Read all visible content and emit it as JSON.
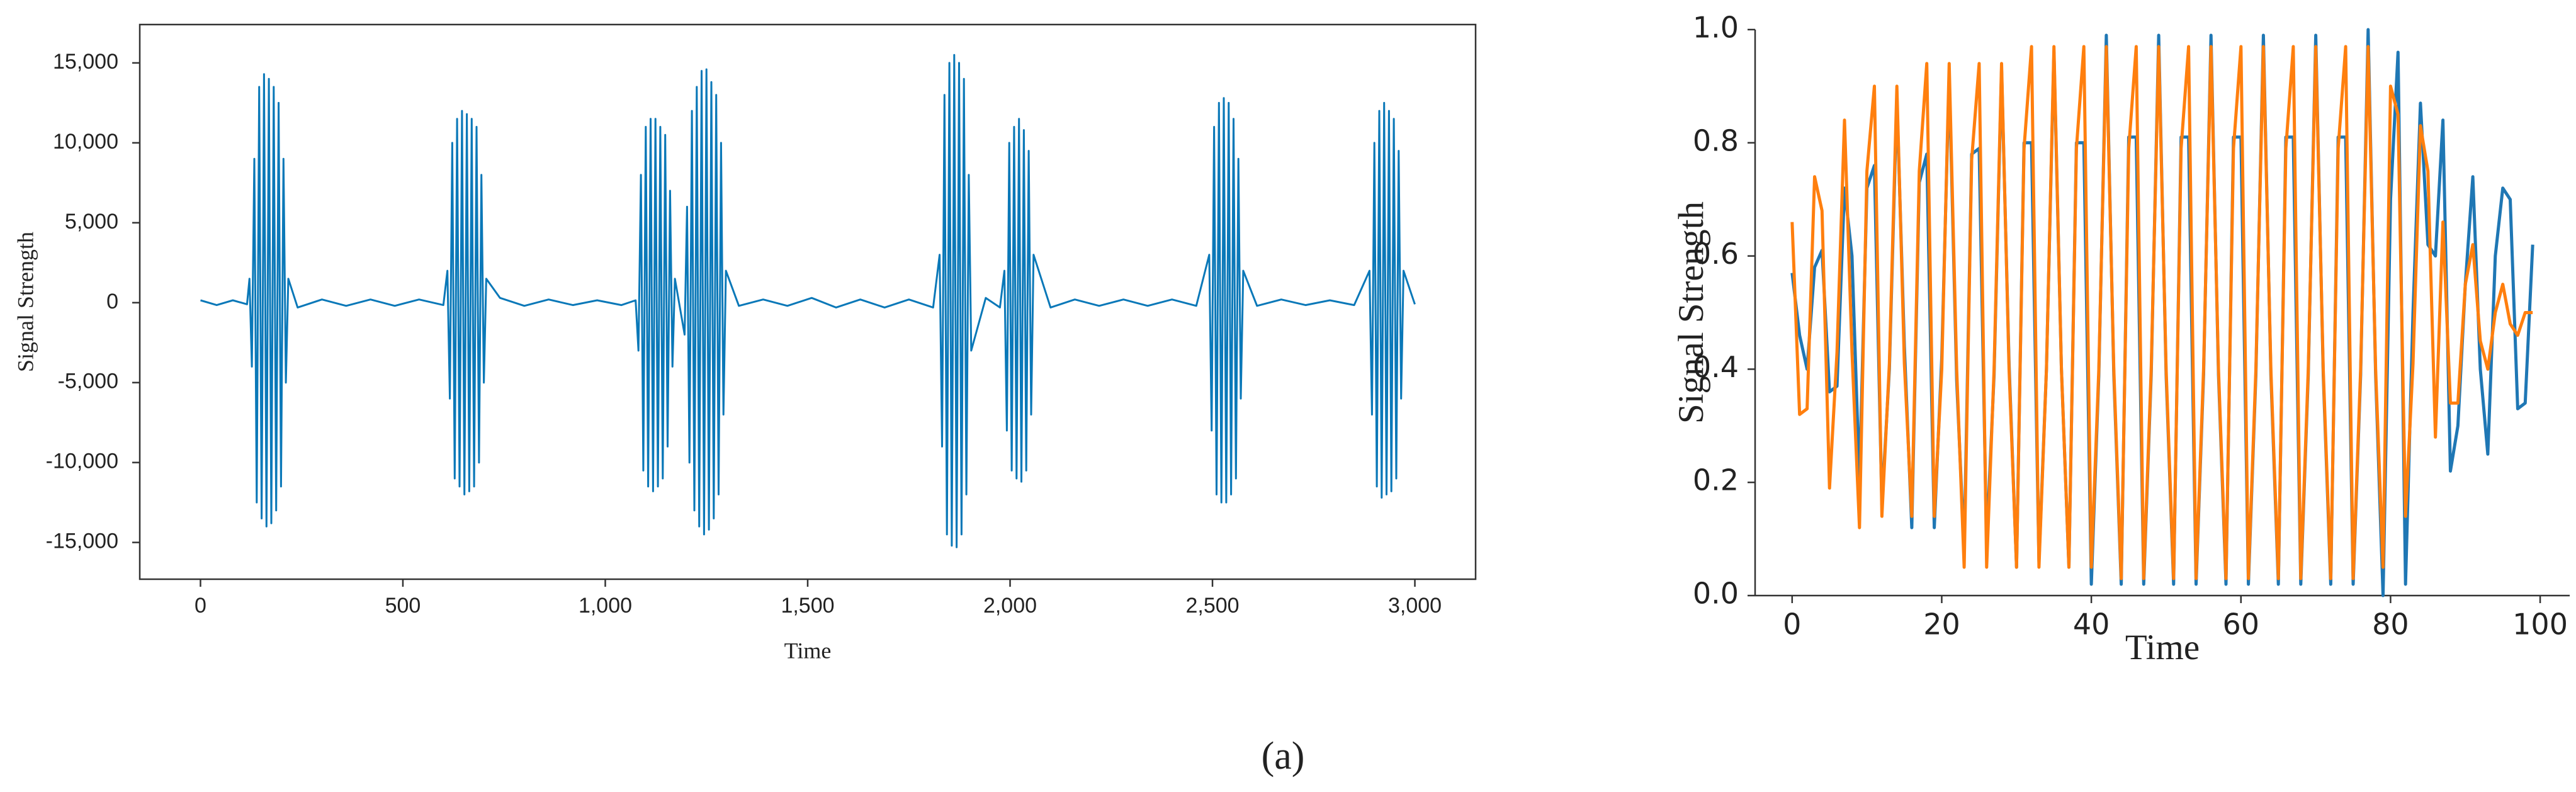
{
  "chart_data": [
    {
      "type": "line",
      "ylabel": "Signal Strength",
      "xlabel": "Time",
      "xlim": [
        -150,
        3150
      ],
      "ylim": [
        -17300,
        17400
      ],
      "xticks": [
        0,
        500,
        {
          "value": 1000,
          "label": "1,000"
        },
        {
          "value": 1500,
          "label": "1,500"
        },
        {
          "value": 2000,
          "label": "2,000"
        },
        {
          "value": 2500,
          "label": "2,500"
        },
        {
          "value": 3000,
          "label": "3,000"
        }
      ],
      "yticks": [
        {
          "value": -15000,
          "label": "-15,000"
        },
        {
          "value": -10000,
          "label": "-10,000"
        },
        {
          "value": -5000,
          "label": "-5,000"
        },
        0,
        {
          "value": 5000,
          "label": "5,000"
        },
        {
          "value": 10000,
          "label": "10,000"
        },
        {
          "value": 15000,
          "label": "15,000"
        }
      ],
      "x": [
        0,
        40,
        80,
        115,
        121,
        127,
        133,
        139,
        145,
        151,
        157,
        163,
        169,
        175,
        181,
        187,
        193,
        199,
        205,
        211,
        217,
        240,
        300,
        360,
        420,
        480,
        540,
        600,
        610,
        616,
        622,
        628,
        634,
        640,
        646,
        652,
        658,
        664,
        670,
        676,
        682,
        688,
        694,
        700,
        706,
        740,
        800,
        860,
        920,
        980,
        1040,
        1075,
        1082,
        1088,
        1094,
        1100,
        1106,
        1112,
        1118,
        1124,
        1130,
        1136,
        1142,
        1148,
        1154,
        1160,
        1166,
        1172,
        1196,
        1202,
        1208,
        1214,
        1220,
        1226,
        1232,
        1238,
        1244,
        1250,
        1256,
        1262,
        1268,
        1274,
        1280,
        1286,
        1292,
        1298,
        1330,
        1390,
        1450,
        1510,
        1570,
        1630,
        1690,
        1750,
        1810,
        1826,
        1832,
        1838,
        1844,
        1850,
        1856,
        1862,
        1868,
        1874,
        1880,
        1886,
        1892,
        1898,
        1904,
        1940,
        1975,
        1986,
        1992,
        1998,
        2004,
        2010,
        2016,
        2022,
        2028,
        2034,
        2040,
        2046,
        2052,
        2058,
        2100,
        2160,
        2220,
        2280,
        2340,
        2400,
        2460,
        2492,
        2498,
        2504,
        2510,
        2516,
        2522,
        2528,
        2534,
        2540,
        2546,
        2552,
        2558,
        2564,
        2570,
        2576,
        2610,
        2670,
        2730,
        2790,
        2850,
        2888,
        2894,
        2900,
        2906,
        2912,
        2918,
        2924,
        2930,
        2936,
        2942,
        2948,
        2954,
        2960,
        2966,
        2972,
        3000
      ],
      "series": [
        {
          "color": "#0a78b8",
          "values": [
            150,
            -150,
            150,
            -100,
            1500,
            -4000,
            9000,
            -12500,
            13500,
            -13500,
            14300,
            -14000,
            14000,
            -13800,
            13500,
            -13000,
            12500,
            -11500,
            9000,
            -5000,
            1500,
            -300,
            200,
            -200,
            200,
            -200,
            200,
            -150,
            2000,
            -6000,
            10000,
            -11000,
            11500,
            -11500,
            12000,
            -12000,
            11800,
            -11800,
            11500,
            -11500,
            11000,
            -10000,
            8000,
            -5000,
            1500,
            300,
            -200,
            200,
            -150,
            150,
            -150,
            150,
            -3000,
            8000,
            -10500,
            11000,
            -11500,
            11500,
            -11800,
            11500,
            -11500,
            11000,
            -11000,
            10500,
            -9000,
            7000,
            -4000,
            1500,
            -2000,
            6000,
            -10000,
            12000,
            -13000,
            13500,
            -14000,
            14500,
            -14500,
            14600,
            -14200,
            13800,
            -13500,
            13000,
            -12000,
            10000,
            -7000,
            2000,
            -200,
            200,
            -200,
            300,
            -300,
            200,
            -300,
            200,
            -300,
            3000,
            -9000,
            13000,
            -14500,
            15000,
            -15200,
            15500,
            -15300,
            15000,
            -14500,
            14000,
            -12000,
            8000,
            -3000,
            300,
            -300,
            2000,
            -8000,
            10000,
            -10500,
            11000,
            -11000,
            11500,
            -11200,
            10800,
            -10500,
            9500,
            -7000,
            3000,
            -300,
            200,
            -200,
            200,
            -200,
            200,
            -200,
            3000,
            -8000,
            11000,
            -12000,
            12500,
            -12500,
            12800,
            -12500,
            12500,
            -12000,
            11500,
            -11000,
            9000,
            -6000,
            2000,
            -200,
            200,
            -150,
            150,
            -150,
            2000,
            -7000,
            10000,
            -11500,
            12000,
            -12200,
            12500,
            -12000,
            12000,
            -11800,
            11500,
            -11000,
            9500,
            -6000,
            2000,
            -100
          ]
        }
      ]
    },
    {
      "type": "line",
      "ylabel": "Signal Strength",
      "xlabel": "Time",
      "xlim": [
        -4.95,
        103.95
      ],
      "ylim": [
        0,
        1
      ],
      "xticks": [
        0,
        20,
        40,
        60,
        80,
        100
      ],
      "yticks": [
        {
          "value": 0,
          "label": "0.0"
        },
        0.2,
        0.4,
        0.6,
        0.8,
        {
          "value": 1,
          "label": "1.0"
        }
      ],
      "x": [
        0,
        1,
        2,
        3,
        4,
        5,
        6,
        7,
        8,
        9,
        10,
        11,
        12,
        13,
        14,
        15,
        16,
        17,
        18,
        19,
        20,
        21,
        22,
        23,
        24,
        25,
        26,
        27,
        28,
        29,
        30,
        31,
        32,
        33,
        34,
        35,
        36,
        37,
        38,
        39,
        40,
        41,
        42,
        43,
        44,
        45,
        46,
        47,
        48,
        49,
        50,
        51,
        52,
        53,
        54,
        55,
        56,
        57,
        58,
        59,
        60,
        61,
        62,
        63,
        64,
        65,
        66,
        67,
        68,
        69,
        70,
        71,
        72,
        73,
        74,
        75,
        76,
        77,
        78,
        79,
        80,
        81,
        82,
        83,
        84,
        85,
        86,
        87,
        88,
        89,
        90,
        91,
        92,
        93,
        94,
        95,
        96,
        97,
        98,
        99
      ],
      "series": [
        {
          "color": "#1f77b4",
          "values": [
            0.57,
            0.46,
            0.4,
            0.58,
            0.61,
            0.36,
            0.37,
            0.72,
            0.6,
            0.2,
            0.72,
            0.76,
            0.16,
            0.4,
            0.88,
            0.44,
            0.12,
            0.73,
            0.78,
            0.12,
            0.42,
            0.92,
            0.38,
            0.08,
            0.78,
            0.79,
            0.09,
            0.39,
            0.93,
            0.41,
            0.05,
            0.8,
            0.8,
            0.06,
            0.4,
            0.96,
            0.4,
            0.05,
            0.8,
            0.8,
            0.02,
            0.39,
            0.99,
            0.39,
            0.02,
            0.81,
            0.81,
            0.02,
            0.39,
            0.99,
            0.39,
            0.02,
            0.81,
            0.81,
            0.02,
            0.39,
            0.99,
            0.39,
            0.02,
            0.81,
            0.81,
            0.02,
            0.39,
            0.99,
            0.39,
            0.02,
            0.81,
            0.81,
            0.02,
            0.39,
            0.99,
            0.39,
            0.02,
            0.81,
            0.81,
            0.02,
            0.39,
            1.0,
            0.39,
            0.0,
            0.7,
            0.96,
            0.02,
            0.5,
            0.87,
            0.62,
            0.6,
            0.84,
            0.22,
            0.3,
            0.55,
            0.74,
            0.4,
            0.25,
            0.6,
            0.72,
            0.7,
            0.33,
            0.34,
            0.62
          ]
        },
        {
          "color": "#ff7f0e",
          "values": [
            0.66,
            0.32,
            0.33,
            0.74,
            0.68,
            0.19,
            0.43,
            0.84,
            0.43,
            0.12,
            0.75,
            0.9,
            0.14,
            0.41,
            0.9,
            0.41,
            0.14,
            0.75,
            0.94,
            0.14,
            0.4,
            0.94,
            0.4,
            0.05,
            0.77,
            0.94,
            0.05,
            0.4,
            0.94,
            0.4,
            0.05,
            0.79,
            0.97,
            0.05,
            0.4,
            0.97,
            0.4,
            0.05,
            0.79,
            0.97,
            0.05,
            0.4,
            0.97,
            0.4,
            0.03,
            0.79,
            0.97,
            0.03,
            0.4,
            0.97,
            0.4,
            0.03,
            0.79,
            0.97,
            0.03,
            0.4,
            0.97,
            0.4,
            0.03,
            0.79,
            0.97,
            0.03,
            0.4,
            0.97,
            0.4,
            0.03,
            0.79,
            0.97,
            0.03,
            0.4,
            0.97,
            0.4,
            0.03,
            0.79,
            0.97,
            0.03,
            0.4,
            0.97,
            0.4,
            0.05,
            0.9,
            0.85,
            0.14,
            0.41,
            0.83,
            0.75,
            0.28,
            0.66,
            0.34,
            0.34,
            0.55,
            0.62,
            0.45,
            0.4,
            0.5,
            0.55,
            0.48,
            0.46,
            0.5,
            0.5
          ]
        }
      ]
    }
  ],
  "caption": "(a)"
}
